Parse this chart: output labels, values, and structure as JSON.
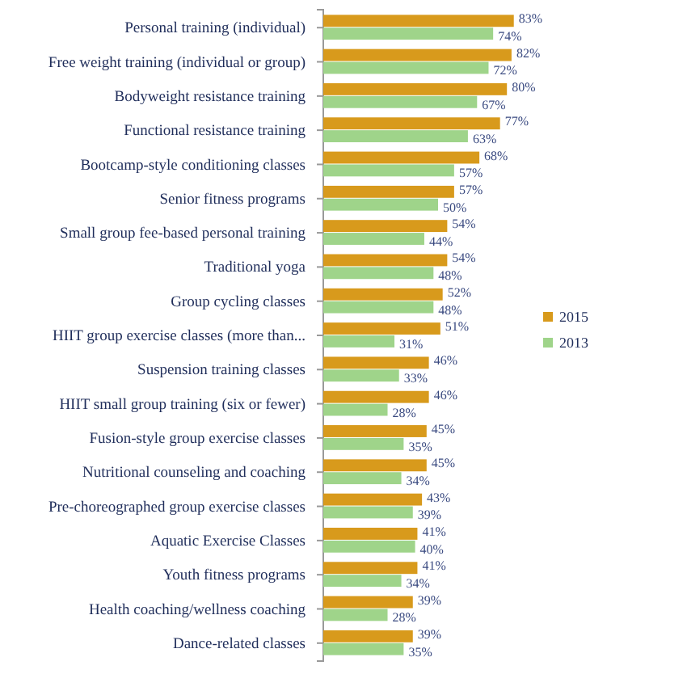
{
  "chart_data": {
    "type": "bar",
    "orientation": "horizontal",
    "legend": "right",
    "xlim": [
      0,
      100
    ],
    "tick_labels": "y",
    "categories": [
      "Personal training (individual)",
      "Free weight training (individual or group)",
      "Bodyweight resistance training",
      "Functional resistance training",
      "Bootcamp-style conditioning classes",
      "Senior fitness programs",
      "Small group fee-based personal training",
      "Traditional yoga",
      "Group cycling classes",
      "HIIT group exercise classes (more than...",
      "Suspension training classes",
      "HIIT small group training (six or fewer)",
      "Fusion-style group exercise classes",
      "Nutritional counseling and coaching",
      "Pre-choreographed group exercise classes",
      "Aquatic Exercise Classes",
      "Youth fitness programs",
      "Health coaching/wellness coaching",
      "Dance-related classes"
    ],
    "series": [
      {
        "name": "2015",
        "color": "#d89a1c",
        "values": [
          83,
          82,
          80,
          77,
          68,
          57,
          54,
          54,
          52,
          51,
          46,
          46,
          45,
          45,
          43,
          41,
          41,
          39,
          39
        ],
        "value_labels": [
          "83%",
          "82%",
          "80%",
          "77%",
          "68%",
          "57%",
          "54%",
          "54%",
          "52%",
          "51%",
          "46%",
          "46%",
          "45%",
          "45%",
          "43%",
          "41%",
          "41%",
          "39%",
          "39%"
        ]
      },
      {
        "name": "2013",
        "color": "#9fd48a",
        "values": [
          74,
          72,
          67,
          63,
          57,
          50,
          44,
          48,
          48,
          31,
          33,
          28,
          35,
          34,
          39,
          40,
          34,
          28,
          35
        ],
        "value_labels": [
          "74%",
          "72%",
          "67%",
          "63%",
          "57%",
          "50%",
          "44%",
          "48%",
          "48%",
          "31%",
          "33%",
          "28%",
          "35%",
          "34%",
          "39%",
          "40%",
          "34%",
          "28%",
          "35%"
        ]
      }
    ]
  }
}
